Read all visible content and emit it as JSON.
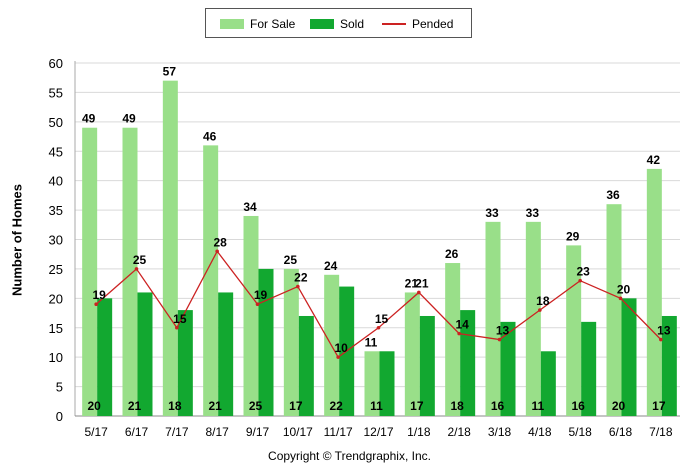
{
  "chart_data": {
    "type": "bar",
    "categories": [
      "5/17",
      "6/17",
      "7/17",
      "8/17",
      "9/17",
      "10/17",
      "11/17",
      "12/17",
      "1/18",
      "2/18",
      "3/18",
      "4/18",
      "5/18",
      "6/18",
      "7/18"
    ],
    "series": [
      {
        "name": "For Sale",
        "type": "bar",
        "color": "#99df89",
        "values": [
          49,
          49,
          57,
          46,
          34,
          25,
          24,
          11,
          21,
          26,
          33,
          33,
          29,
          36,
          42
        ]
      },
      {
        "name": "Sold",
        "type": "bar",
        "color": "#12a830",
        "values": [
          20,
          21,
          18,
          21,
          25,
          17,
          22,
          11,
          17,
          18,
          16,
          11,
          16,
          20,
          17
        ]
      },
      {
        "name": "Pended",
        "type": "line",
        "color": "#cc2222",
        "values": [
          19,
          25,
          15,
          28,
          19,
          22,
          10,
          15,
          21,
          14,
          13,
          18,
          23,
          20,
          13
        ]
      }
    ],
    "ylabel": "Number of Homes",
    "xlabel": "",
    "ylim": [
      0,
      60
    ],
    "yticks": [
      0,
      5,
      10,
      15,
      20,
      25,
      30,
      35,
      40,
      45,
      50,
      55,
      60
    ],
    "grid": true,
    "legend": "top"
  },
  "legend": {
    "for_sale": "For Sale",
    "sold": "Sold",
    "pended": "Pended"
  },
  "copyright": "Copyright © Trendgraphix, Inc."
}
